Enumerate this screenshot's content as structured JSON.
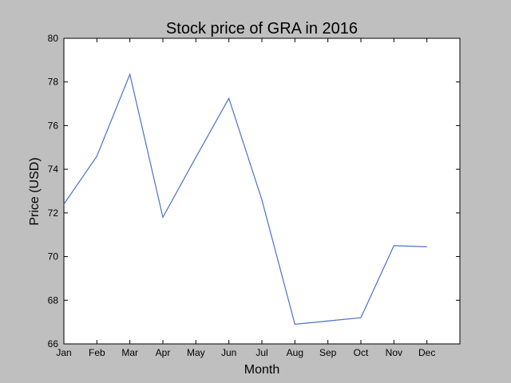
{
  "chart_data": {
    "type": "line",
    "title": "Stock price of GRA in 2016",
    "xlabel": "Month",
    "ylabel": "Price (USD)",
    "categories": [
      "Jan",
      "Feb",
      "Mar",
      "Apr",
      "May",
      "Jun",
      "Jul",
      "Aug",
      "Sep",
      "Oct",
      "Nov",
      "Dec"
    ],
    "x_range": [
      0,
      12
    ],
    "ylim": [
      66,
      80
    ],
    "yticks": [
      66,
      68,
      70,
      72,
      74,
      76,
      78,
      80
    ],
    "grid": false,
    "series": [
      {
        "name": "GRA",
        "color": "#4c72c4",
        "values": [
          72.4,
          74.6,
          78.35,
          71.8,
          74.55,
          77.25,
          72.6,
          66.9,
          67.05,
          67.2,
          70.5,
          70.45
        ]
      }
    ]
  }
}
